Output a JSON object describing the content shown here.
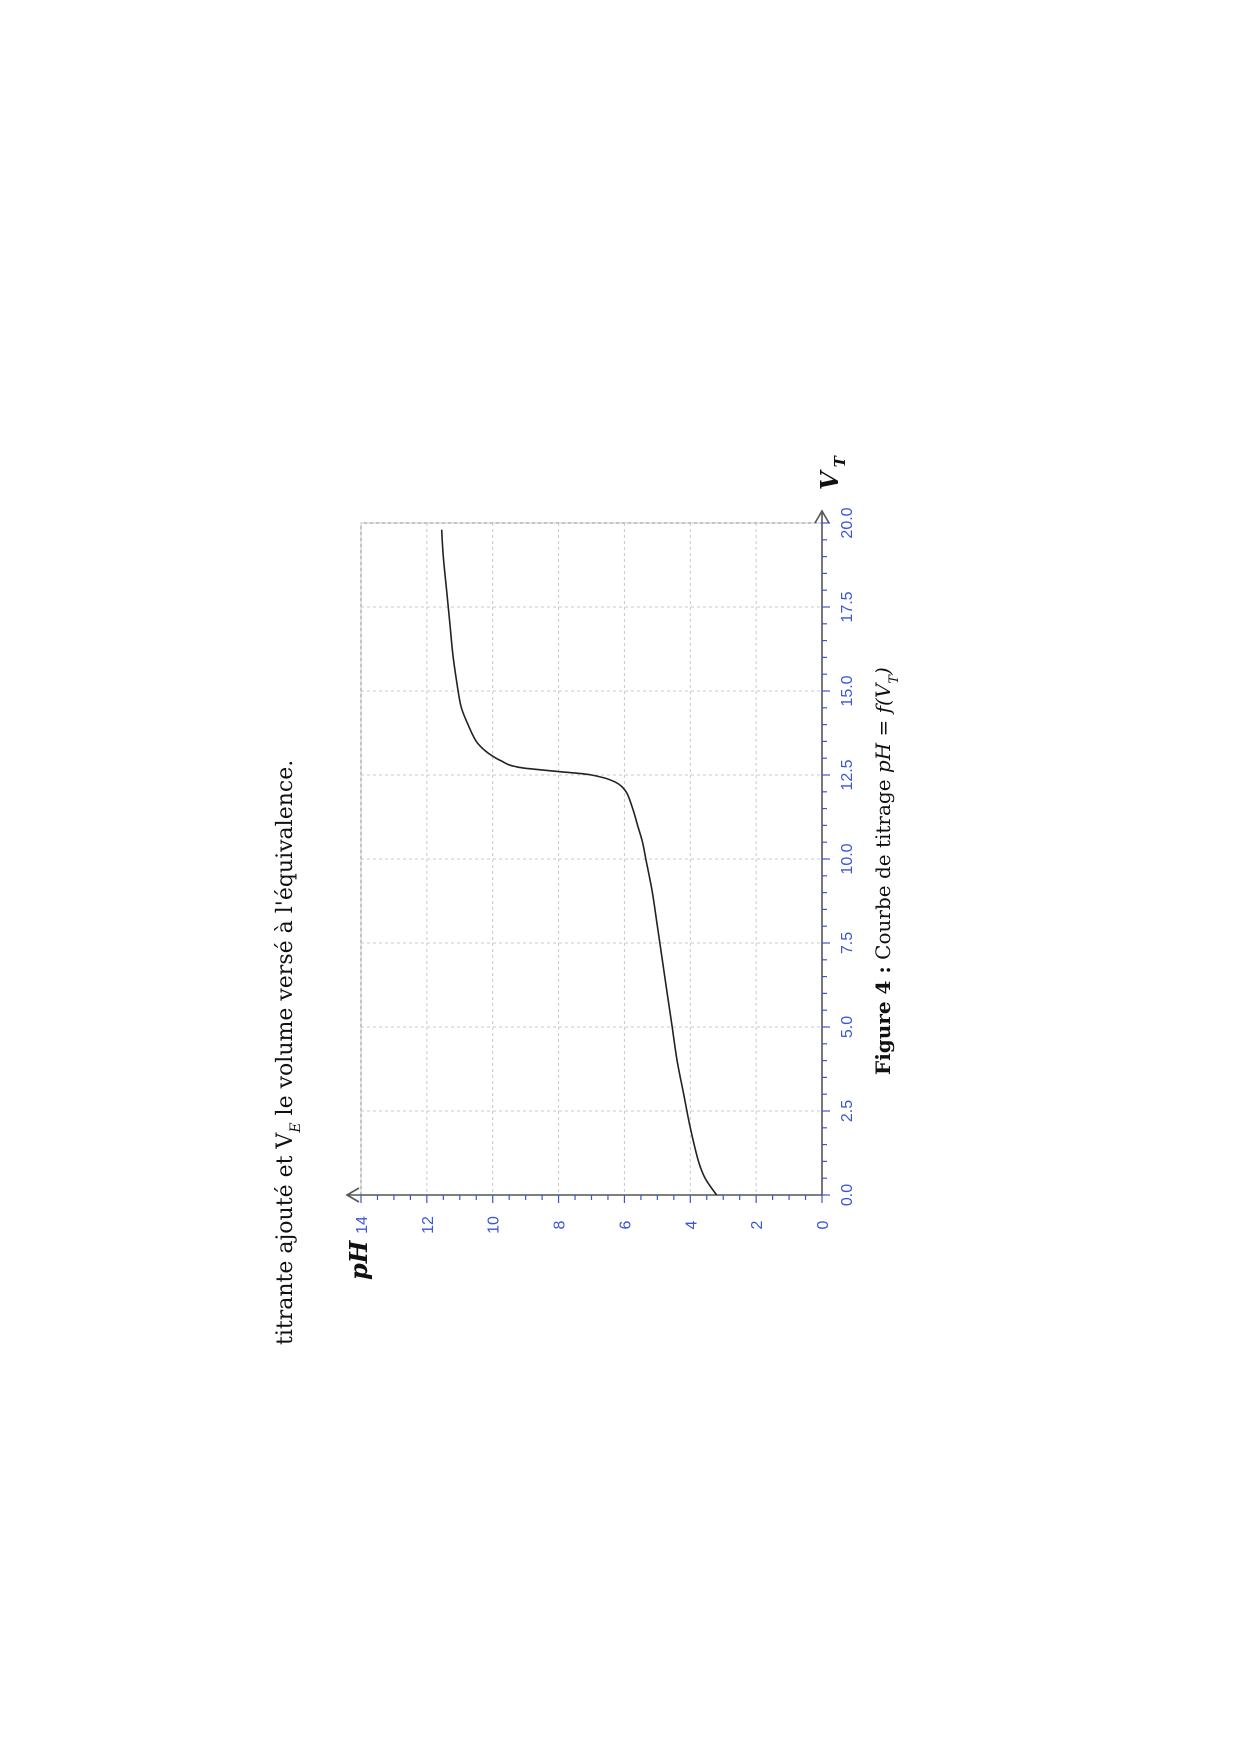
{
  "document": {
    "intro_text": "titrante ajouté et V",
    "intro_sub": "E",
    "intro_text_2": " le volume versé à l'équivalence."
  },
  "caption": {
    "label": "Figure 4 :",
    "text": " Courbe de titrage ",
    "formula_ph": "pH",
    "formula_eq": " = ",
    "formula_f": "f",
    "formula_open": "(V",
    "formula_sub": "T",
    "formula_close": ")"
  },
  "chart_data": {
    "type": "line",
    "xlabel": "V",
    "xlabel_sub": "T",
    "ylabel": "pH",
    "xlim": [
      0,
      20
    ],
    "ylim": [
      0,
      14
    ],
    "x_ticks": [
      "0.0",
      "2.5",
      "5.0",
      "7.5",
      "10.0",
      "12.5",
      "15.0",
      "17.5",
      "20.0"
    ],
    "y_ticks": [
      "0",
      "2",
      "4",
      "6",
      "8",
      "10",
      "12",
      "14"
    ],
    "grid": true,
    "orientation": "rotated-90-ccw",
    "series": [
      {
        "x": [
          0,
          0.5,
          1,
          2,
          3,
          4,
          5,
          6,
          7,
          8,
          9,
          10,
          10.5,
          11,
          11.5,
          12,
          12.3,
          12.5,
          12.6,
          12.7,
          12.75,
          12.8,
          12.9,
          13,
          13.2,
          13.5,
          14,
          14.5,
          15,
          16,
          17,
          18,
          19,
          19.8
        ],
        "y": [
          3.2,
          3.55,
          3.75,
          4.0,
          4.2,
          4.4,
          4.55,
          4.7,
          4.85,
          5.0,
          5.15,
          5.35,
          5.45,
          5.6,
          5.75,
          5.95,
          6.3,
          7.0,
          8.0,
          9.0,
          9.3,
          9.5,
          9.7,
          9.9,
          10.2,
          10.5,
          10.75,
          10.95,
          11.05,
          11.2,
          11.3,
          11.4,
          11.5,
          11.55
        ]
      }
    ],
    "colors": {
      "line": "#222222",
      "grid": "#c8c8c8",
      "tick_labels": "#3a55d6",
      "axes": "#555555"
    }
  }
}
